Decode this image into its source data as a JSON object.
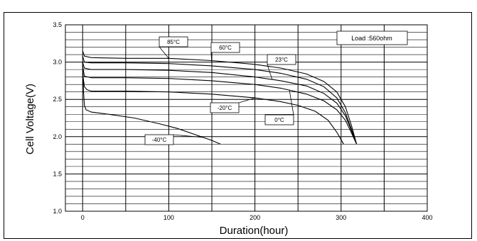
{
  "chart_data": {
    "type": "line",
    "title": "",
    "xlabel": "Duration(hour)",
    "ylabel": "Cell Voltage(V)",
    "xlim": [
      -20,
      400
    ],
    "ylim": [
      1.0,
      3.5
    ],
    "x_ticks": [
      0,
      100,
      200,
      300,
      400
    ],
    "y_ticks": [
      1.0,
      1.5,
      2.0,
      2.5,
      3.0,
      3.5
    ],
    "x_tick_labels": [
      "0",
      "100",
      "200",
      "300",
      "400"
    ],
    "y_tick_labels": [
      "1.0",
      "1.5",
      "2.0",
      "2.5",
      "3.0",
      "3.5"
    ],
    "grid": true,
    "annotation_box": "Load :560ohm",
    "series": [
      {
        "name": "85°C",
        "x": [
          0,
          2,
          10,
          50,
          100,
          150,
          200,
          230,
          260,
          280,
          295,
          305,
          312,
          318
        ],
        "y": [
          3.15,
          3.08,
          3.06,
          3.05,
          3.05,
          3.02,
          2.97,
          2.92,
          2.84,
          2.74,
          2.6,
          2.4,
          2.15,
          1.9
        ]
      },
      {
        "name": "60°C",
        "x": [
          0,
          2,
          10,
          50,
          100,
          150,
          200,
          230,
          260,
          280,
          295,
          305,
          312,
          318
        ],
        "y": [
          3.08,
          3.0,
          2.99,
          2.99,
          2.98,
          2.95,
          2.9,
          2.85,
          2.77,
          2.67,
          2.52,
          2.32,
          2.1,
          1.9
        ]
      },
      {
        "name": "23°C",
        "x": [
          0,
          2,
          10,
          50,
          100,
          150,
          200,
          230,
          260,
          280,
          295,
          305,
          312,
          318
        ],
        "y": [
          3.0,
          2.92,
          2.9,
          2.9,
          2.89,
          2.86,
          2.8,
          2.75,
          2.68,
          2.58,
          2.45,
          2.28,
          2.08,
          1.9
        ]
      },
      {
        "name": "0°C",
        "x": [
          0,
          2,
          10,
          50,
          100,
          150,
          200,
          230,
          260,
          280,
          295,
          305,
          312,
          318
        ],
        "y": [
          2.95,
          2.81,
          2.79,
          2.79,
          2.78,
          2.75,
          2.7,
          2.65,
          2.57,
          2.48,
          2.36,
          2.22,
          2.05,
          1.9
        ]
      },
      {
        "name": "-20°C",
        "x": [
          0,
          2,
          5,
          10,
          50,
          100,
          150,
          200,
          230,
          250,
          270,
          285,
          295,
          303
        ],
        "y": [
          2.85,
          2.67,
          2.63,
          2.61,
          2.61,
          2.6,
          2.57,
          2.52,
          2.47,
          2.42,
          2.34,
          2.22,
          2.06,
          1.9
        ]
      },
      {
        "name": "-40°C",
        "x": [
          0,
          1,
          2,
          4,
          10,
          30,
          60,
          90,
          110,
          130,
          150,
          160
        ],
        "y": [
          3.0,
          2.6,
          2.42,
          2.36,
          2.33,
          2.3,
          2.25,
          2.17,
          2.11,
          2.03,
          1.95,
          1.9
        ]
      }
    ]
  },
  "labels": [
    {
      "text": "85°C",
      "series": "85°C"
    },
    {
      "text": "60°C",
      "series": "60°C"
    },
    {
      "text": "23°C",
      "series": "23°C"
    },
    {
      "text": "-20°C",
      "series": "-20°C"
    },
    {
      "text": "0°C",
      "series": "0°C"
    },
    {
      "text": "-40°C",
      "series": "-40°C"
    }
  ]
}
